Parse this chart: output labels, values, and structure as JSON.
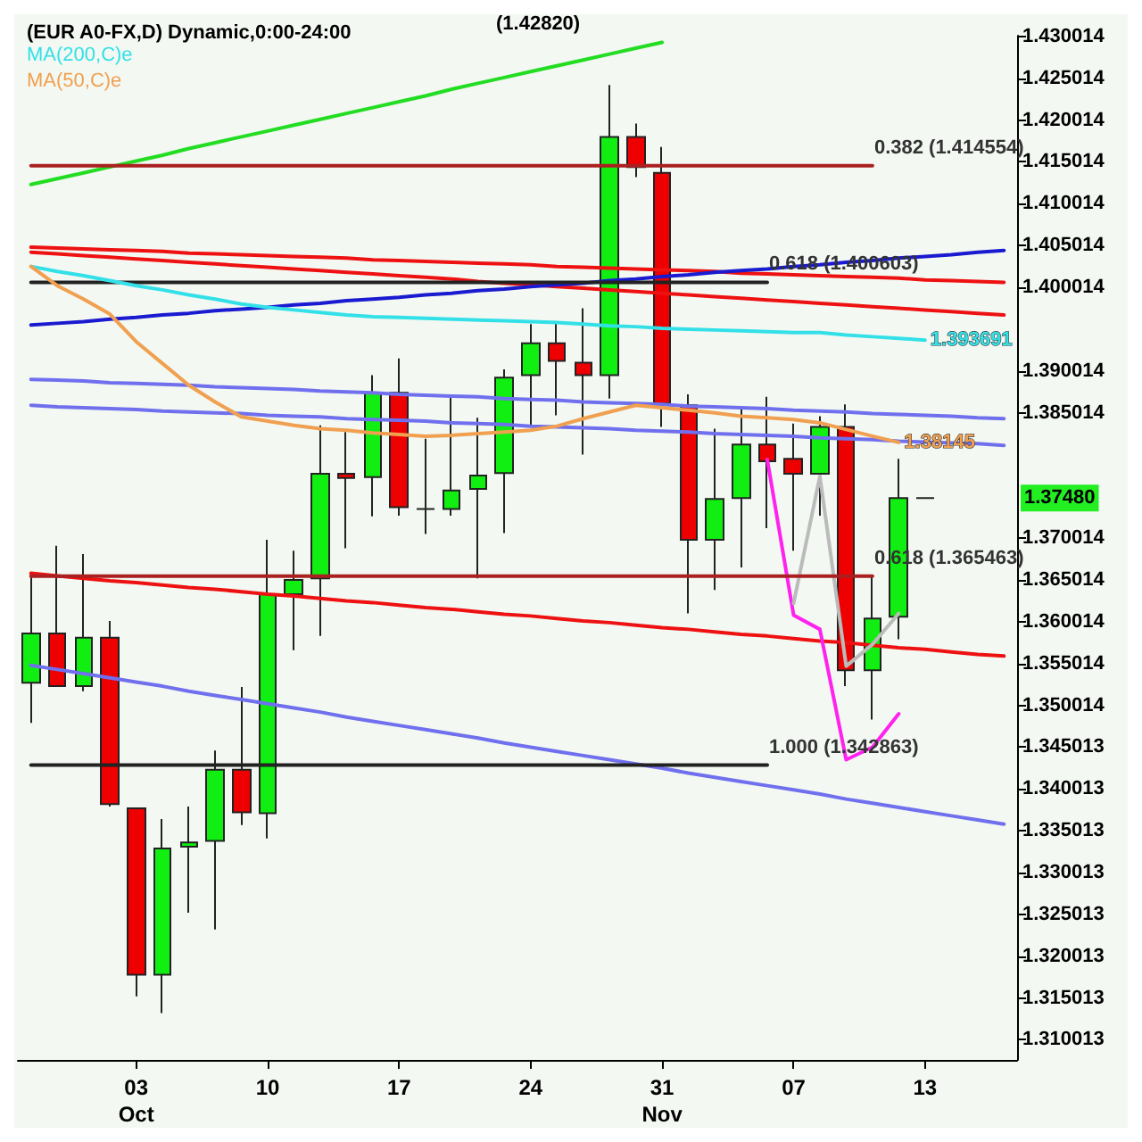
{
  "chart_data": {
    "type": "candlestick",
    "title": "(EUR A0-FX,D) Dynamic,0:00-24:00",
    "categories": [
      null,
      null,
      null,
      null,
      "03\nOct",
      null,
      null,
      null,
      null,
      "10",
      null,
      null,
      null,
      null,
      "17",
      null,
      null,
      null,
      null,
      "24",
      null,
      null,
      null,
      null,
      "31\nNov",
      null,
      null,
      null,
      null,
      "07",
      null,
      null,
      null,
      null,
      "13",
      null,
      null,
      null
    ],
    "ohlc": [
      [
        1.3527,
        1.3658,
        1.3479,
        1.3586
      ],
      [
        1.3586,
        1.3691,
        1.3523,
        1.3523
      ],
      [
        1.3523,
        1.3681,
        1.3517,
        1.3581
      ],
      [
        1.3581,
        1.3601,
        1.3379,
        1.3382
      ],
      [
        1.3377,
        1.3377,
        1.3152,
        1.3178
      ],
      [
        1.3178,
        1.3364,
        1.3132,
        1.3329
      ],
      [
        1.3331,
        1.3379,
        1.3252,
        1.3336
      ],
      [
        1.3338,
        1.3446,
        1.3232,
        1.3423
      ],
      [
        1.3423,
        1.3522,
        1.3357,
        1.3372
      ],
      [
        1.3371,
        1.3698,
        1.3341,
        1.3633
      ],
      [
        1.3633,
        1.3685,
        1.3566,
        1.365
      ],
      [
        1.3652,
        1.3835,
        1.3583,
        1.3777
      ],
      [
        1.3777,
        1.3827,
        1.3688,
        1.3772
      ],
      [
        1.3773,
        1.3895,
        1.3726,
        1.3874
      ],
      [
        1.3874,
        1.3915,
        1.3727,
        1.3737
      ],
      [
        1.3735,
        1.3819,
        1.3705,
        1.3735
      ],
      [
        1.3735,
        1.387,
        1.3727,
        1.3757
      ],
      [
        1.3759,
        1.3844,
        1.3652,
        1.3775
      ],
      [
        1.3778,
        1.3902,
        1.3706,
        1.3892
      ],
      [
        1.3895,
        1.3956,
        1.3833,
        1.3933
      ],
      [
        1.3933,
        1.3958,
        1.3847,
        1.3912
      ],
      [
        1.391,
        1.3975,
        1.38,
        1.3895
      ],
      [
        1.3895,
        1.4242,
        1.3867,
        1.418
      ],
      [
        1.418,
        1.4196,
        1.4132,
        1.4144
      ],
      [
        1.4137,
        1.4168,
        1.3833,
        1.3861
      ],
      [
        1.3859,
        1.3872,
        1.361,
        1.3698
      ],
      [
        1.3698,
        1.3831,
        1.3638,
        1.3747
      ],
      [
        1.3748,
        1.3857,
        1.3665,
        1.3812
      ],
      [
        1.3812,
        1.3869,
        1.3712,
        1.3792
      ],
      [
        1.3795,
        1.3837,
        1.3685,
        1.3777
      ],
      [
        1.3777,
        1.3846,
        1.3727,
        1.3833
      ],
      [
        1.3833,
        1.386,
        1.3523,
        1.3542
      ],
      [
        1.3542,
        1.3656,
        1.3483,
        1.3604
      ],
      [
        1.3606,
        1.3795,
        1.3579,
        1.3748
      ],
      [
        1.3748,
        1.3748,
        1.3748,
        1.3748
      ],
      null,
      null,
      null
    ],
    "colors": [
      "#11ee11",
      "#ee0000",
      "#11ee11",
      "#ee0000",
      "#ee0000",
      "#11ee11",
      "#11ee11",
      "#11ee11",
      "#ee0000",
      "#11ee11",
      "#11ee11",
      "#11ee11",
      "#ee0000",
      "#11ee11",
      "#ee0000",
      "#222222",
      "#11ee11",
      "#11ee11",
      "#11ee11",
      "#11ee11",
      "#ee0000",
      "#ee0000",
      "#11ee11",
      "#ee0000",
      "#ee0000",
      "#ee0000",
      "#11ee11",
      "#11ee11",
      "#ee0000",
      "#ee0000",
      "#11ee11",
      "#ee0000",
      "#11ee11",
      "#11ee11",
      "#222222",
      null,
      null,
      null
    ],
    "series": [
      {
        "type": "line",
        "color": "#22dd22",
        "values": [
          1.4123,
          1.413,
          1.4137,
          1.4144,
          1.4151,
          1.4158,
          1.4166,
          1.4173,
          1.418,
          1.4187,
          1.4194,
          1.4201,
          1.4208,
          1.4215,
          1.4222,
          1.4229,
          1.4237,
          1.4244,
          1.4251,
          1.4258,
          1.4265,
          1.4272,
          1.4279,
          1.4286,
          1.4293,
          null,
          null,
          null,
          null,
          null,
          null,
          null,
          null,
          null,
          null,
          null,
          null,
          null
        ]
      },
      {
        "type": "line",
        "color": "#aa2020",
        "values": [
          1.414554,
          1.414554,
          1.414554,
          1.414554,
          1.414554,
          1.414554,
          1.414554,
          1.414554,
          1.414554,
          1.414554,
          1.414554,
          1.414554,
          1.414554,
          1.414554,
          1.414554,
          1.414554,
          1.414554,
          1.414554,
          1.414554,
          1.414554,
          1.414554,
          1.414554,
          1.414554,
          1.414554,
          1.414554,
          1.414554,
          1.414554,
          1.414554,
          1.414554,
          1.414554,
          1.414554,
          1.414554,
          1.414554,
          null,
          null,
          null,
          null,
          null
        ],
        "value_labels": [
          null,
          null,
          null,
          null,
          null,
          null,
          null,
          null,
          null,
          null,
          null,
          null,
          null,
          null,
          null,
          null,
          null,
          null,
          null,
          null,
          null,
          null,
          null,
          null,
          null,
          null,
          null,
          null,
          null,
          null,
          null,
          null,
          "0.382 (1.414554)",
          null,
          null,
          null,
          null,
          null
        ]
      },
      {
        "type": "line",
        "color": "#222222",
        "values": [
          1.400603,
          1.400603,
          1.400603,
          1.400603,
          1.400603,
          1.400603,
          1.400603,
          1.400603,
          1.400603,
          1.400603,
          1.400603,
          1.400603,
          1.400603,
          1.400603,
          1.400603,
          1.400603,
          1.400603,
          1.400603,
          1.400603,
          1.400603,
          1.400603,
          1.400603,
          1.400603,
          1.400603,
          1.400603,
          1.400603,
          1.400603,
          1.400603,
          1.400603,
          null,
          null,
          null,
          null,
          null,
          null,
          null,
          null,
          null
        ],
        "value_labels": [
          null,
          null,
          null,
          null,
          null,
          null,
          null,
          null,
          null,
          null,
          null,
          null,
          null,
          null,
          null,
          null,
          null,
          null,
          null,
          null,
          null,
          null,
          null,
          null,
          null,
          null,
          null,
          null,
          "0.618 (1.400603)",
          null,
          null,
          null,
          null,
          null,
          null,
          null,
          null,
          null
        ]
      },
      {
        "type": "line",
        "color": "#aa2020",
        "values": [
          1.365463,
          1.365463,
          1.365463,
          1.365463,
          1.365463,
          1.365463,
          1.365463,
          1.365463,
          1.365463,
          1.365463,
          1.365463,
          1.365463,
          1.365463,
          1.365463,
          1.365463,
          1.365463,
          1.365463,
          1.365463,
          1.365463,
          1.365463,
          1.365463,
          1.365463,
          1.365463,
          1.365463,
          1.365463,
          1.365463,
          1.365463,
          1.365463,
          1.365463,
          1.365463,
          1.365463,
          1.365463,
          1.365463,
          null,
          null,
          null,
          null,
          null
        ],
        "value_labels": [
          null,
          null,
          null,
          null,
          null,
          null,
          null,
          null,
          null,
          null,
          null,
          null,
          null,
          null,
          null,
          null,
          null,
          null,
          null,
          null,
          null,
          null,
          null,
          null,
          null,
          null,
          null,
          null,
          null,
          null,
          null,
          null,
          "0.618 (1.365463)",
          null,
          null,
          null,
          null,
          null
        ]
      },
      {
        "type": "line",
        "color": "#222222",
        "values": [
          1.342863,
          1.342863,
          1.342863,
          1.342863,
          1.342863,
          1.342863,
          1.342863,
          1.342863,
          1.342863,
          1.342863,
          1.342863,
          1.342863,
          1.342863,
          1.342863,
          1.342863,
          1.342863,
          1.342863,
          1.342863,
          1.342863,
          1.342863,
          1.342863,
          1.342863,
          1.342863,
          1.342863,
          1.342863,
          1.342863,
          1.342863,
          1.342863,
          1.342863,
          null,
          null,
          null,
          null,
          null,
          null,
          null,
          null,
          null
        ],
        "value_labels": [
          null,
          null,
          null,
          null,
          null,
          null,
          null,
          null,
          null,
          null,
          null,
          null,
          null,
          null,
          null,
          null,
          null,
          null,
          null,
          null,
          null,
          null,
          null,
          null,
          null,
          null,
          null,
          null,
          "1.000 (1.342863)",
          null,
          null,
          null,
          null,
          null,
          null,
          null,
          null,
          null
        ]
      },
      {
        "type": "line",
        "color": "#ee1111",
        "values": [
          1.4048,
          1.4047,
          1.4046,
          1.4045,
          1.4044,
          1.4043,
          1.4041,
          1.404,
          1.4039,
          1.4038,
          1.4037,
          1.4036,
          1.4035,
          1.4033,
          1.4032,
          1.4031,
          1.403,
          1.4029,
          1.4028,
          1.4027,
          1.4025,
          1.4024,
          1.4023,
          1.4022,
          1.4021,
          1.402,
          1.4019,
          1.4017,
          1.4016,
          1.4015,
          1.4014,
          1.4013,
          1.4012,
          1.4011,
          1.4009,
          1.4008,
          1.4007,
          1.4006
        ]
      },
      {
        "type": "line",
        "color": "#ee1111",
        "values": [
          1.4042,
          1.404,
          1.4038,
          1.4036,
          1.4034,
          1.4032,
          1.403,
          1.4028,
          1.4026,
          1.4024,
          1.4022,
          1.402,
          1.4018,
          1.4016,
          1.4014,
          1.4012,
          1.401,
          1.4007,
          1.4005,
          1.4003,
          1.4001,
          1.3999,
          1.3997,
          1.3995,
          1.3993,
          1.3991,
          1.3989,
          1.3987,
          1.3985,
          1.3983,
          1.3981,
          1.3979,
          1.3977,
          1.3975,
          1.3973,
          1.3971,
          1.3969,
          1.3967
        ]
      },
      {
        "type": "line",
        "color": "#ee1111",
        "values": [
          1.3658,
          1.3655,
          1.3652,
          1.3649,
          1.3647,
          1.3644,
          1.3641,
          1.3639,
          1.3636,
          1.3633,
          1.3631,
          1.3628,
          1.3625,
          1.3623,
          1.362,
          1.3617,
          1.3615,
          1.3612,
          1.3609,
          1.3607,
          1.3604,
          1.3601,
          1.3599,
          1.3596,
          1.3593,
          1.3591,
          1.3588,
          1.3585,
          1.3583,
          1.358,
          1.3577,
          1.3575,
          1.3572,
          1.3569,
          1.3567,
          1.3564,
          1.3561,
          1.3559
        ]
      },
      {
        "type": "line",
        "color": "#1a1ad0",
        "values": [
          1.3955,
          1.3957,
          1.3959,
          1.3962,
          1.3964,
          1.3967,
          1.3969,
          1.3972,
          1.3974,
          1.3976,
          1.3979,
          1.3981,
          1.3984,
          1.3986,
          1.3988,
          1.3991,
          1.3993,
          1.3996,
          1.3998,
          1.4001,
          1.4003,
          1.4005,
          1.4008,
          1.401,
          1.4013,
          1.4015,
          1.4018,
          1.402,
          1.4022,
          1.4025,
          1.4027,
          1.403,
          1.4032,
          1.4035,
          1.4037,
          1.4039,
          1.4042,
          1.4044
        ]
      },
      {
        "type": "line",
        "color": "#7070ee",
        "values": [
          1.389,
          1.3889,
          1.3888,
          1.3886,
          1.3885,
          1.3884,
          1.3883,
          1.3881,
          1.388,
          1.3879,
          1.3878,
          1.3876,
          1.3875,
          1.3874,
          1.3872,
          1.3871,
          1.387,
          1.3869,
          1.3867,
          1.3866,
          1.3865,
          1.3863,
          1.3862,
          1.3861,
          1.386,
          1.3858,
          1.3857,
          1.3856,
          1.3855,
          1.3853,
          1.3852,
          1.3851,
          1.3849,
          1.3848,
          1.3847,
          1.3846,
          1.3844,
          1.3843
        ]
      },
      {
        "type": "line",
        "color": "#7070ee",
        "values": [
          1.3859,
          1.3857,
          1.3856,
          1.3855,
          1.3854,
          1.3852,
          1.3851,
          1.385,
          1.3849,
          1.3847,
          1.3846,
          1.3845,
          1.3843,
          1.3842,
          1.3841,
          1.384,
          1.3838,
          1.3837,
          1.3836,
          1.3834,
          1.3833,
          1.3832,
          1.3831,
          1.3829,
          1.3828,
          1.3827,
          1.3825,
          1.3824,
          1.3823,
          1.3822,
          1.382,
          1.3819,
          1.3818,
          1.3816,
          1.3815,
          1.3814,
          1.3813,
          1.3811
        ]
      },
      {
        "type": "line",
        "color": "#7070ee",
        "values": [
          1.3548,
          1.3543,
          1.3538,
          1.3533,
          1.3528,
          1.3523,
          1.3517,
          1.3512,
          1.3507,
          1.3502,
          1.3497,
          1.3492,
          1.3486,
          1.3481,
          1.3476,
          1.3471,
          1.3466,
          1.3461,
          1.3455,
          1.345,
          1.3445,
          1.344,
          1.3435,
          1.343,
          1.3425,
          1.3419,
          1.3414,
          1.3409,
          1.3404,
          1.3399,
          1.3394,
          1.3388,
          1.3383,
          1.3378,
          1.3373,
          1.3368,
          1.3363,
          1.3358
        ]
      },
      {
        "type": "line",
        "name": "MA(200,C)e",
        "color": "#33e0e8",
        "values": [
          1.4025,
          1.4019,
          1.4014,
          1.4008,
          1.4002,
          1.3997,
          1.3991,
          1.3986,
          1.398,
          1.3976,
          1.3973,
          1.397,
          1.3967,
          1.3965,
          1.3964,
          1.3963,
          1.3962,
          1.3961,
          1.396,
          1.3959,
          1.3958,
          1.3956,
          1.3954,
          1.3953,
          1.3951,
          1.395,
          1.3949,
          1.3948,
          1.3947,
          1.3946,
          1.3946,
          1.3943,
          1.3941,
          1.3939,
          1.393691,
          null,
          null,
          null
        ],
        "value_labels": [
          null,
          null,
          null,
          null,
          null,
          null,
          null,
          null,
          null,
          null,
          null,
          null,
          null,
          null,
          null,
          null,
          null,
          null,
          null,
          null,
          null,
          null,
          null,
          null,
          null,
          null,
          null,
          null,
          null,
          null,
          null,
          null,
          null,
          null,
          "1.393691",
          null,
          null,
          null
        ]
      },
      {
        "type": "line",
        "name": "MA(50,C)e",
        "color": "#f0a050",
        "values": [
          1.4025,
          1.4002,
          1.3986,
          1.3968,
          1.3935,
          1.3909,
          1.3883,
          1.3863,
          1.3845,
          1.384,
          1.3835,
          1.3831,
          1.3829,
          1.3826,
          1.3824,
          1.3822,
          1.3823,
          1.3825,
          1.3827,
          1.3829,
          1.3834,
          1.3843,
          1.3851,
          1.3859,
          1.3856,
          1.3853,
          1.385,
          1.3846,
          1.3844,
          1.3842,
          1.3838,
          1.383,
          1.3822,
          1.38145,
          null,
          null,
          null,
          null
        ],
        "value_labels": [
          null,
          null,
          null,
          null,
          null,
          null,
          null,
          null,
          null,
          null,
          null,
          null,
          null,
          null,
          null,
          null,
          null,
          null,
          null,
          null,
          null,
          null,
          null,
          null,
          null,
          null,
          null,
          null,
          null,
          null,
          null,
          null,
          null,
          "1.38145",
          null,
          null,
          null,
          null
        ]
      },
      {
        "type": "line",
        "color": "#ff22ee",
        "values": [
          null,
          null,
          null,
          null,
          null,
          null,
          null,
          null,
          null,
          null,
          null,
          null,
          null,
          null,
          null,
          null,
          null,
          null,
          null,
          null,
          null,
          null,
          null,
          null,
          null,
          null,
          null,
          null,
          1.3794,
          1.3608,
          1.3591,
          1.3435,
          1.345,
          1.349,
          null,
          null,
          null,
          null
        ]
      },
      {
        "type": "line",
        "color": "#bbbbbb",
        "values": [
          null,
          null,
          null,
          null,
          null,
          null,
          null,
          null,
          null,
          null,
          null,
          null,
          null,
          null,
          null,
          null,
          null,
          null,
          null,
          null,
          null,
          null,
          null,
          null,
          null,
          null,
          null,
          null,
          null,
          1.3622,
          1.3774,
          1.3547,
          1.3573,
          1.361,
          null,
          null,
          null,
          null
        ]
      }
    ],
    "annotations": [
      "(1.42820)",
      {
        "text": "1.37480",
        "y": 1.3748
      }
    ],
    "ylim": [
      1.3076,
      1.4301
    ],
    "yticks": [
      1.310013,
      1.315013,
      1.320013,
      1.325013,
      1.330013,
      1.335013,
      1.340013,
      1.345013,
      1.350014,
      1.355014,
      1.360014,
      1.365014,
      1.370014,
      1.385014,
      1.390014,
      1.400014,
      1.405014,
      1.410014,
      1.415014,
      1.420014,
      1.425014,
      1.430014
    ],
    "legend": "top left",
    "marker": "none"
  }
}
